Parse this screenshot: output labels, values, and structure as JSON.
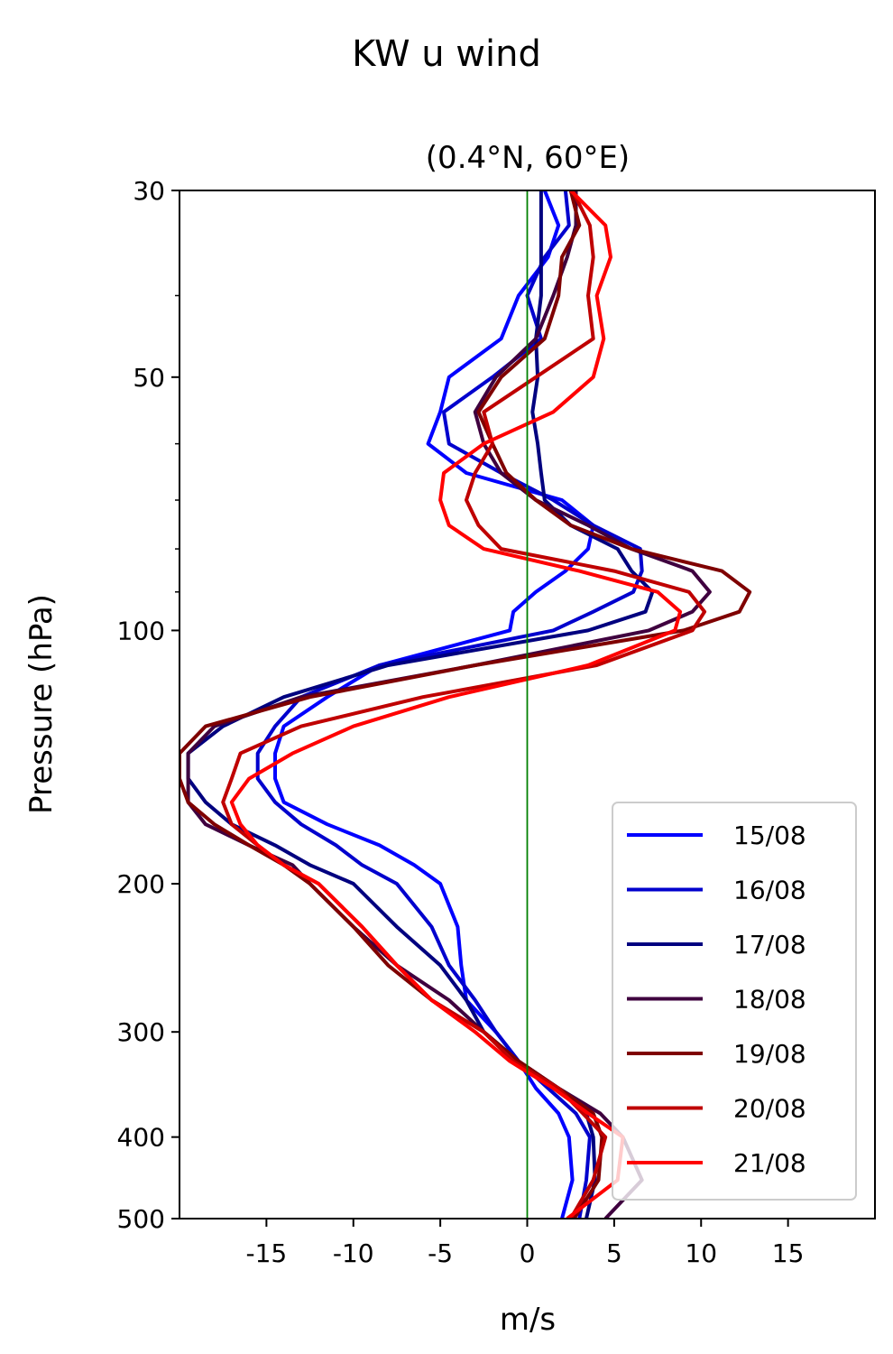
{
  "suptitle": "KW u wind",
  "chart_data": {
    "type": "line",
    "title": "(0.4°N, 60°E)",
    "xlabel": "m/s",
    "ylabel": "Pressure (hPa)",
    "xlim": [
      -20,
      20
    ],
    "ylim": [
      500,
      30
    ],
    "yscale": "log",
    "xticks": [
      -15,
      -10,
      -5,
      0,
      5,
      10,
      15
    ],
    "xtick_labels": [
      "-15",
      "-10",
      "-5",
      "0",
      "5",
      "10",
      "15"
    ],
    "yticks": [
      30,
      50,
      100,
      200,
      300,
      400,
      500
    ],
    "ytick_labels": [
      "30",
      "50",
      "100",
      "200",
      "300",
      "400",
      "500"
    ],
    "minor_yticks": [
      40,
      60,
      70,
      80,
      90
    ],
    "zero_line": {
      "x": 0,
      "color": "#008000"
    },
    "legend_position": "lower-right",
    "y": [
      30,
      33,
      36,
      40,
      45,
      50,
      55,
      60,
      65,
      70,
      75,
      80,
      85,
      90,
      95,
      100,
      110,
      120,
      130,
      140,
      150,
      160,
      170,
      180,
      190,
      200,
      225,
      250,
      275,
      300,
      325,
      350,
      375,
      400,
      450,
      500
    ],
    "series": [
      {
        "name": "15/08",
        "color": "#0000ff",
        "values": [
          1,
          1.8,
          1.2,
          -0.5,
          -1.5,
          -4.5,
          -5,
          -5.7,
          -3.5,
          2,
          3.8,
          3.5,
          2.2,
          0.5,
          -0.8,
          -1,
          -8.5,
          -11.5,
          -14,
          -14.5,
          -14.5,
          -14,
          -11.5,
          -8.5,
          -6.5,
          -5,
          -4,
          -3.8,
          -3.5,
          -1.8,
          -0.5,
          0.5,
          1.8,
          2.4,
          2.6,
          2.0
        ]
      },
      {
        "name": "16/08",
        "color": "#0000cd",
        "values": [
          2.2,
          2.4,
          1.0,
          0,
          0.8,
          -2,
          -4.8,
          -4.5,
          -1.5,
          1.5,
          3.8,
          6.5,
          6.6,
          6.1,
          3.8,
          1.5,
          -8.5,
          -13,
          -14.5,
          -15.5,
          -15.5,
          -14.5,
          -13,
          -11,
          -9.5,
          -7.5,
          -5.5,
          -4.5,
          -3,
          -1.8,
          -0.5,
          1.2,
          2.8,
          3.6,
          3.4,
          3.0
        ]
      },
      {
        "name": "17/08",
        "color": "#00007f",
        "values": [
          0.8,
          0.8,
          0.8,
          0.8,
          0.5,
          0.6,
          0.3,
          0.6,
          0.8,
          1.0,
          2.5,
          5.2,
          6.0,
          7.2,
          6.8,
          3.5,
          -8,
          -14,
          -17.5,
          -19.5,
          -19.5,
          -18.5,
          -17,
          -14.5,
          -12.5,
          -10,
          -7.5,
          -5,
          -3.5,
          -2.5,
          -0.5,
          1.8,
          3.4,
          3.8,
          3.9,
          3.4
        ]
      },
      {
        "name": "18/08",
        "color": "#3f003f",
        "values": [
          2.8,
          2.8,
          2.3,
          1.5,
          0.5,
          -1.8,
          -3,
          -2.5,
          -1.5,
          0.5,
          3.5,
          6.0,
          9.5,
          10.5,
          9.5,
          7,
          -3,
          -13,
          -18,
          -19.5,
          -19.5,
          -19.5,
          -18.5,
          -16,
          -13.5,
          -12.5,
          -10,
          -7.5,
          -4.5,
          -2.5,
          -0.5,
          1.8,
          4.2,
          5.5,
          6.6,
          4.5
        ]
      },
      {
        "name": "19/08",
        "color": "#7f0000",
        "values": [
          2.5,
          3.0,
          2.0,
          1.8,
          1.0,
          -1.5,
          -2.8,
          -2,
          -1.2,
          0.5,
          2.5,
          6.0,
          11.2,
          12.8,
          12.2,
          9,
          -3,
          -12.5,
          -18.5,
          -20,
          -20,
          -19.5,
          -18,
          -16,
          -14,
          -12.5,
          -10,
          -8,
          -5.5,
          -2.5,
          -0.5,
          1.8,
          3.8,
          4.3,
          4.1,
          2.7
        ]
      },
      {
        "name": "20/08",
        "color": "#bf0000",
        "values": [
          2.6,
          3.6,
          3.8,
          3.5,
          3.8,
          0.5,
          -2.5,
          -2,
          -3,
          -3.5,
          -2.8,
          -1.5,
          5,
          9.3,
          10.2,
          9.5,
          4,
          -6,
          -13,
          -16.5,
          -17,
          -17.5,
          -17,
          -15.5,
          -14,
          -12,
          -9.5,
          -7.5,
          -5.5,
          -2.5,
          -0.8,
          1.8,
          3.2,
          4.5,
          3.8,
          2.5
        ]
      },
      {
        "name": "21/08",
        "color": "#ff0000",
        "values": [
          2.5,
          4.5,
          4.8,
          4.0,
          4.4,
          3.8,
          1.5,
          -2.5,
          -4.8,
          -5,
          -4.5,
          -2.5,
          3,
          7.5,
          8.8,
          8.5,
          3.5,
          -4.5,
          -10,
          -13.5,
          -16,
          -17,
          -16.5,
          -15.5,
          -14,
          -12,
          -9.5,
          -7.5,
          -5.5,
          -3,
          -1,
          1.5,
          3.5,
          5.5,
          5.2,
          2.3
        ]
      }
    ]
  }
}
